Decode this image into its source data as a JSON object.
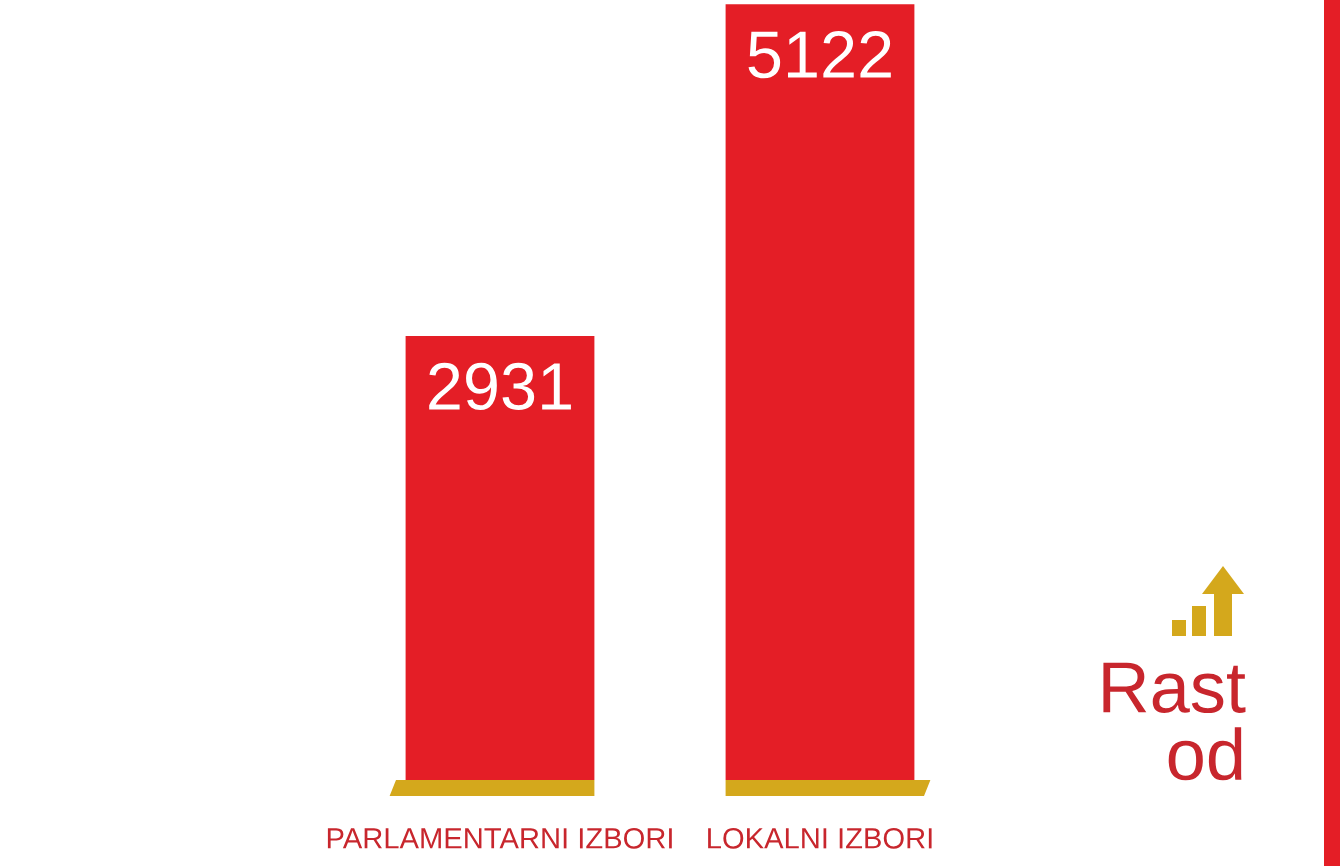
{
  "chart_data": {
    "type": "bar",
    "categories": [
      "PARLAMENTARNI IZBORI",
      "LOKALNI IZBORI"
    ],
    "values": [
      2931,
      5122
    ],
    "color": "#e41e26",
    "ylim": [
      0,
      5150
    ],
    "data_labels": true,
    "tick_labels": "x",
    "annotations": [
      "Rast od"
    ]
  }
}
